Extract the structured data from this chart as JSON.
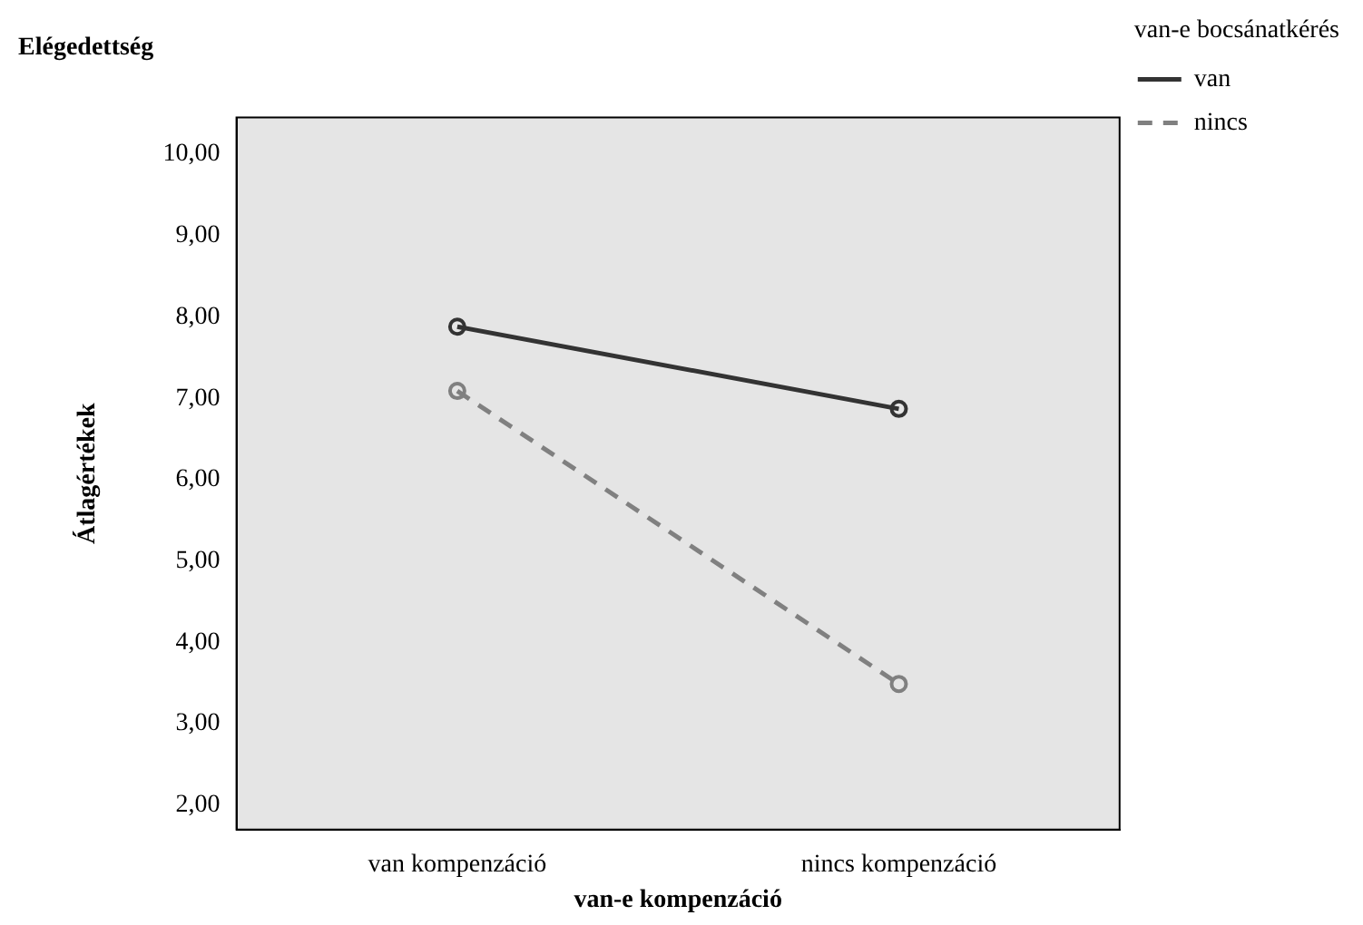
{
  "chart_data": {
    "type": "line",
    "title": "Elégedettség",
    "xlabel": "van-e kompenzáció",
    "ylabel": "Átlagértékek",
    "legend_title": "van-e bocsánatkérés",
    "categories": [
      "van kompenzáció",
      "nincs kompenzáció"
    ],
    "series": [
      {
        "name": "van",
        "color": "#333333",
        "values": [
          7.88,
          6.87
        ],
        "line_style": "solid"
      },
      {
        "name": "nincs",
        "color": "#808080",
        "values": [
          7.09,
          3.49
        ],
        "line_style": "dashed"
      }
    ],
    "ylim": [
      1.7,
      10.45
    ],
    "yticks": [
      {
        "value": 2,
        "label": "2,00"
      },
      {
        "value": 3,
        "label": "3,00"
      },
      {
        "value": 4,
        "label": "4,00"
      },
      {
        "value": 5,
        "label": "5,00"
      },
      {
        "value": 6,
        "label": "6,00"
      },
      {
        "value": 7,
        "label": "7,00"
      },
      {
        "value": 8,
        "label": "8,00"
      },
      {
        "value": 9,
        "label": "9,00"
      },
      {
        "value": 10,
        "label": "10,00"
      }
    ],
    "grid": false,
    "legend": "top right",
    "marker": "circle"
  }
}
